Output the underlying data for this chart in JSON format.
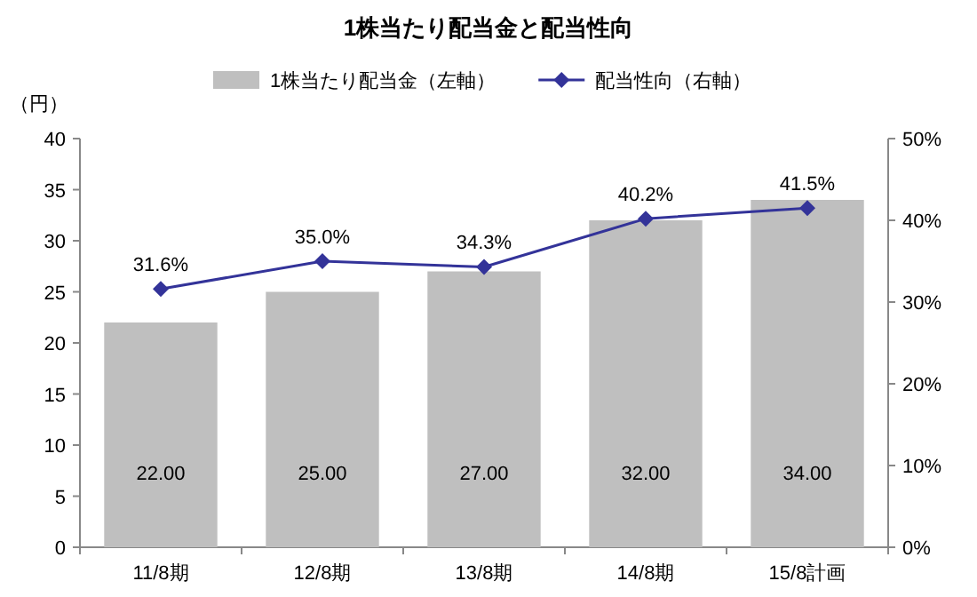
{
  "chart_data": {
    "type": "bar",
    "title": "1株当たり配当金と配当性向",
    "ylabel": "（円）",
    "categories": [
      "11/8期",
      "12/8期",
      "13/8期",
      "14/8期",
      "15/8計画"
    ],
    "series": [
      {
        "name": "1株当たり配当金（左軸）",
        "color": "#bfbfbf",
        "values": [
          22,
          25,
          27,
          32,
          34
        ],
        "value_labels": [
          "22.00",
          "25.00",
          "27.00",
          "32.00",
          "34.00"
        ]
      },
      {
        "name": "配当性向（右軸）",
        "type": "line",
        "axis": "y2",
        "color": "#333399",
        "values": [
          31.6,
          35.0,
          34.3,
          40.2,
          41.5
        ],
        "value_labels": [
          "31.6%",
          "35.0%",
          "34.3%",
          "40.2%",
          "41.5%"
        ]
      }
    ],
    "ylim": [
      0,
      40
    ],
    "yticks": [
      0,
      5,
      10,
      15,
      20,
      25,
      30,
      35,
      40
    ],
    "y2lim": [
      0,
      50
    ],
    "y2ticks": [
      {
        "value": 0,
        "label": "0%"
      },
      {
        "value": 10,
        "label": "10%"
      },
      {
        "value": 20,
        "label": "20%"
      },
      {
        "value": 30,
        "label": "30%"
      },
      {
        "value": 40,
        "label": "40%"
      },
      {
        "value": 50,
        "label": "50%"
      }
    ],
    "marker": "diamond",
    "legend": "top",
    "grid": false
  }
}
